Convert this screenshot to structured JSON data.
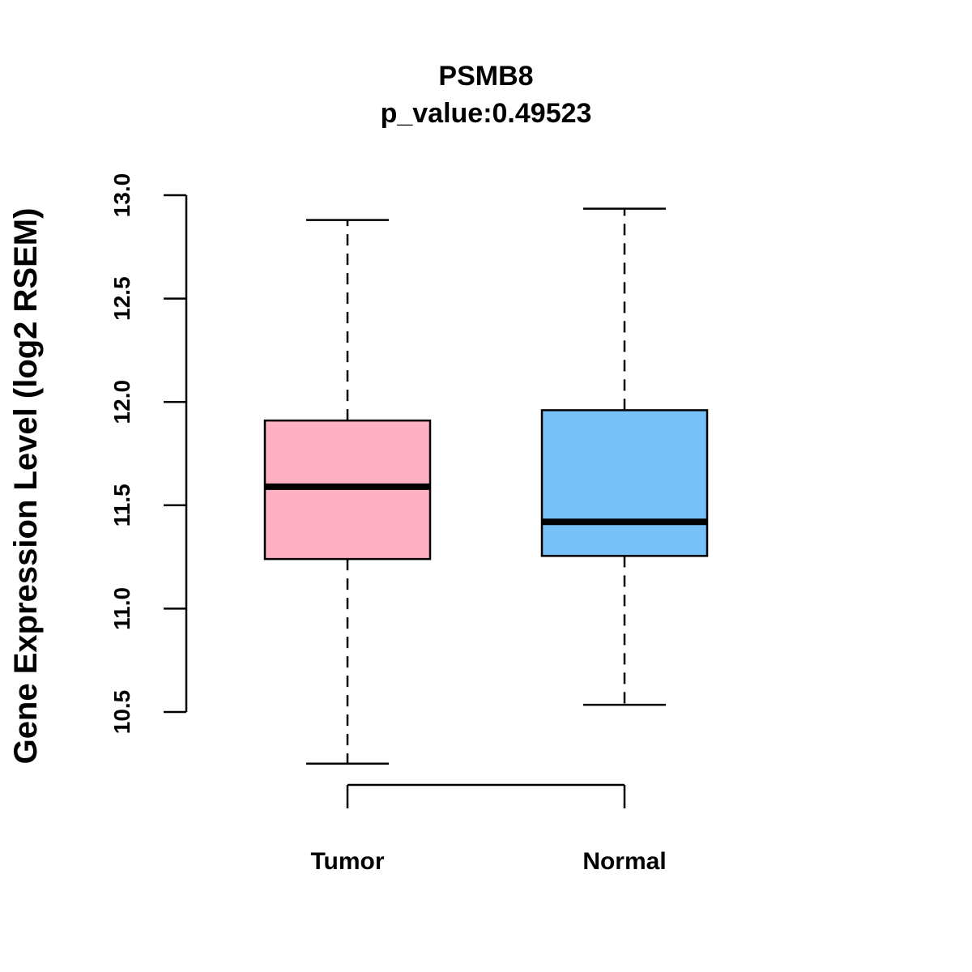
{
  "chart_data": {
    "type": "box",
    "title": "PSMB8",
    "subtitle": "p_value:0.49523",
    "ylabel": "Gene Expression Level (log2 RSEM)",
    "xlabel": "",
    "ylim": [
      10.5,
      13.0
    ],
    "yticks": [
      "10.5",
      "11.0",
      "11.5",
      "12.0",
      "12.5",
      "13.0"
    ],
    "grid": false,
    "categories": [
      "Tumor",
      "Normal"
    ],
    "series": [
      {
        "category": "Tumor",
        "color": "#FDB1C2",
        "whisker_low": 10.25,
        "q1": 11.24,
        "median": 11.59,
        "q3": 11.91,
        "whisker_high": 12.88
      },
      {
        "category": "Normal",
        "color": "#78C1F8",
        "whisker_low": 10.535,
        "q1": 11.255,
        "median": 11.42,
        "q3": 11.96,
        "whisker_high": 12.935
      }
    ]
  }
}
